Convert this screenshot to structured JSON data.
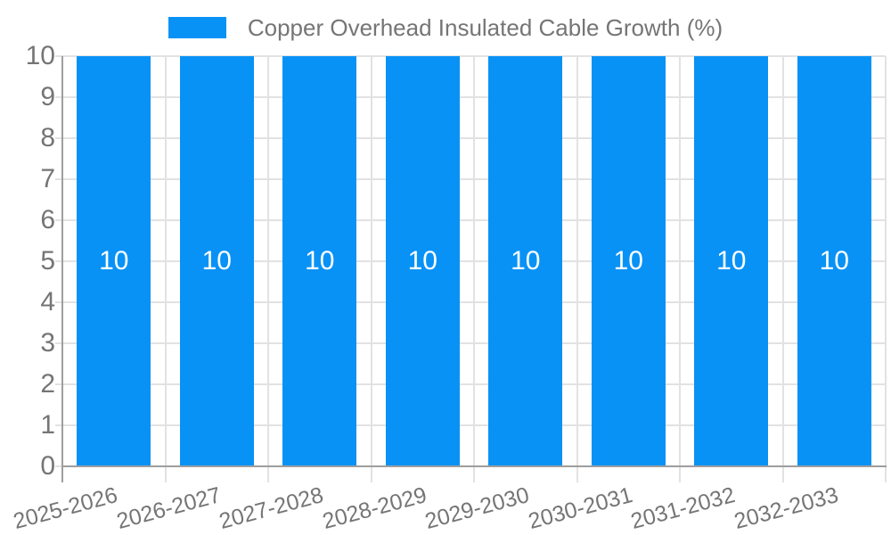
{
  "legend": {
    "label": "Copper Overhead Insulated Cable Growth (%)"
  },
  "chart_data": {
    "type": "bar",
    "title": "Copper Overhead Insulated Cable Growth (%)",
    "series": [
      {
        "name": "Copper Overhead Insulated Cable Growth (%)",
        "values": [
          10,
          10,
          10,
          10,
          10,
          10,
          10,
          10
        ]
      }
    ],
    "categories": [
      "2025-2026",
      "2026-2027",
      "2027-2028",
      "2028-2029",
      "2029-2030",
      "2030-2031",
      "2031-2032",
      "2032-2033"
    ],
    "bar_value_labels": [
      "10",
      "10",
      "10",
      "10",
      "10",
      "10",
      "10",
      "10"
    ],
    "xlabel": "",
    "ylabel": "",
    "ylim": [
      0,
      10
    ],
    "yticks": [
      0,
      1,
      2,
      3,
      4,
      5,
      6,
      7,
      8,
      9,
      10
    ],
    "grid": true,
    "legend_position": "top",
    "x_label_rotation_deg": -15,
    "colors": {
      "bar": "#0992f5",
      "grid": "#e2e2e2",
      "axis": "#9e9e9e",
      "tick_text": "#757575",
      "value_label": "#ffffff",
      "background": "#ffffff"
    }
  }
}
